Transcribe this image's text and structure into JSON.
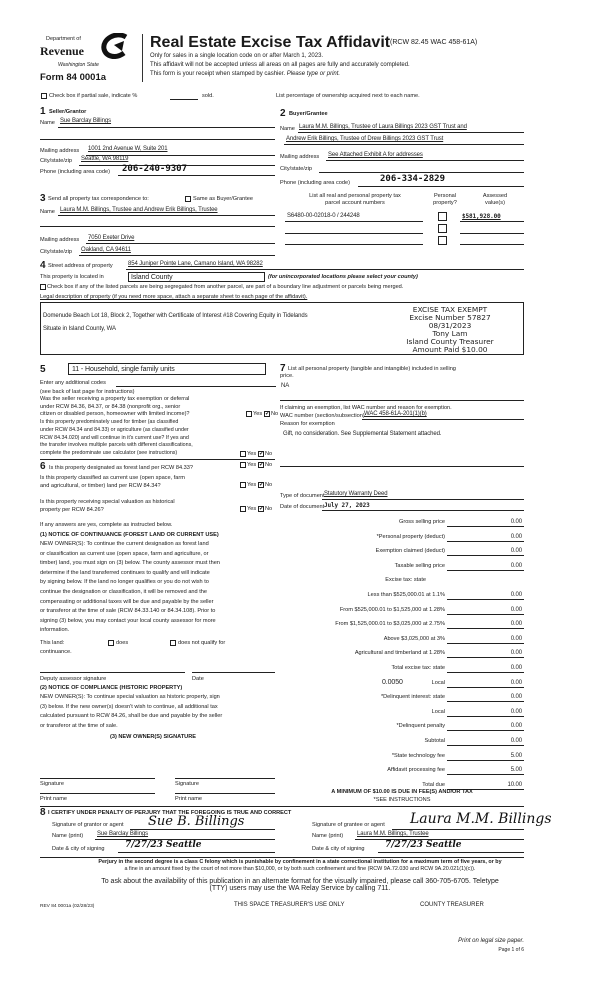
{
  "header": {
    "dept": "Department of",
    "revenue": "Revenue",
    "state": "Washington State",
    "form": "Form 84 0001a",
    "title": "Real Estate Excise Tax Affidavit",
    "rcw": "(RCW 82.45 WAC 458-61A)",
    "line1": "Only for sales in a single location code on or after March 1, 2023.",
    "line2": "This affidavit will not be accepted unless all areas on all pages are fully and accurately completed.",
    "line3": "This form is your receipt when stamped by cashier.",
    "line3_italic": "Please type or print."
  },
  "partial": {
    "label": "Check box if partial sale, indicate %",
    "sold": "sold."
  },
  "ownership_note": "List percentage of ownership acquired next to each name.",
  "seller": {
    "num": "1",
    "heading": "Seller/Grantor",
    "name_label": "Name",
    "name": "Sue Barclay Billings",
    "mailing_label": "Mailing address",
    "mailing": "1001 2nd Avenue W, Suite 201",
    "city_label": "City/state/zip",
    "city": "Seattle, WA 98119",
    "phone_label": "Phone (including area code)",
    "phone": "206-240-9307"
  },
  "buyer": {
    "num": "2",
    "heading": "Buyer/Grantee",
    "name_label": "Name",
    "name1": "Laura M.M. Billings, Trustee of Laura Billings 2023 GST Trust and",
    "name2": "Andrew Erik Billings, Trustee of Drew Billings 2023 GST Trust",
    "mailing_label": "Mailing address",
    "mailing": "See Attached Exhibit A for addresses",
    "city_label": "City/state/zip",
    "phone_label": "Phone (including area code)",
    "phone": "206-334-2829"
  },
  "correspondence": {
    "num": "3",
    "label": "Send all property tax correspondence to:",
    "same_label": "Same as Buyer/Grantee",
    "name_label": "Name",
    "name": "Laura M.M. Billings, Trustee and Andrew Erik Billings, Trustee",
    "mailing_label": "Mailing address",
    "mailing": "7050 Exeter Drive",
    "city_label": "City/state/zip",
    "city": "Oakland, CA 94611"
  },
  "parcels": {
    "h1a": "List all real and personal property tax",
    "h1b": "parcel account numbers",
    "h2a": "Personal",
    "h2b": "property?",
    "h3a": "Assessed",
    "h3b": "value(s)",
    "rows": [
      {
        "number": "S6480-00-02018-0 / 244248",
        "personal": false,
        "value": "$581,928.00"
      },
      {
        "number": "",
        "personal": false,
        "value": ""
      },
      {
        "number": "",
        "personal": false,
        "value": ""
      }
    ]
  },
  "property": {
    "num": "4",
    "street_label": "Street address of property",
    "street": "854 Juniper Pointe Lane, Camano Island, WA 98282",
    "located_label": "This property is located in",
    "county": "Island County",
    "county_note": "(for unincorporated locations please select your county)",
    "segregated_label": "Check box if any of the listed parcels are being segregated from another parcel, are part of a boundary line adjustment or parcels being merged.",
    "legal_label": "Legal description of property (if you need more space, attach a separate sheet to each page of the affidavit).",
    "legal1": "Domenude Beach Lot 18, Block 2, Together with Certificate of Interest #18 Covering Equity in Tidelands",
    "legal2": "Situate in Island County, WA"
  },
  "stamp": {
    "l1": "EXCISE TAX EXEMPT",
    "l2": "Excise Number 57827",
    "l3": "08/31/2023",
    "l4": "Tony Lam",
    "l5": "Island County Treasurer",
    "l6": "Amount Paid $10.00"
  },
  "section5": {
    "num": "5",
    "code": "11 - Household, single family units",
    "additional_label": "Enter any additional codes",
    "see_back": "(see back of last page for instructions)",
    "q1": [
      "Was the seller receiving a property tax exemption or deferral",
      "under RCW 84.36, 84.37, or 84.38 (nonprofit org., senior",
      "citizen or disabled person, homeowner with limited income)?"
    ],
    "q2": [
      "Is this property predominately used for timber (as classified",
      "under RCW 84.34 and 84.33) or agriculture (as classified under",
      "RCW 84.34.020) and will continue in it's current use? If yes and",
      "the transfer involves multiple parcels with different classifications,",
      "complete the predominate use calculator (see instructions)"
    ],
    "yes": "Yes",
    "no": "No"
  },
  "section6": {
    "num": "6",
    "q1": "Is this property designated as forest land per RCW 84.33?",
    "q2": [
      "Is this property classified as current use (open space, farm",
      "and agricultural, or timber) land per RCW 84.34?"
    ],
    "q3": [
      "Is this property receiving special valuation as historical",
      "property per RCW 84.26?"
    ],
    "if_yes": "If any answers are yes, complete as instructed below.",
    "notice1_title": "(1) NOTICE OF CONTINUANCE (FOREST LAND OR CURRENT USE)",
    "notice1": [
      "NEW OWNER(S): To continue the current designation as forest land",
      "or classification as current use (open space, farm and agriculture, or",
      "timber) land, you must sign on (3) below. The county assessor must then",
      "determine if the land transferred continues to qualify and will indicate",
      "by signing below. If the land no longer qualifies or you do not wish to",
      "continue the designation or classification, it will be removed and the",
      "compensating or additional taxes will be due and payable by the seller",
      "or transferor at the time of sale (RCW 84.33.140 or 84.34.108). Prior to",
      "signing (3) below, you may contact your local county assessor for more",
      "information."
    ],
    "this_land": "This land:",
    "does": "does",
    "does_not": "does not qualify for",
    "continuance": "continuance.",
    "deputy": "Deputy assessor signature",
    "date": "Date",
    "notice2_title": "(2) NOTICE OF COMPLIANCE (HISTORIC PROPERTY)",
    "notice2": [
      "NEW OWNER(S): To continue special valuation as historic property, sign",
      "(3) below. If the new owner(s) doesn't wish to continue, all additional tax",
      "calculated pursuant to RCW 84.26, shall be due and payable by the seller",
      "or transferor at the time of sale."
    ],
    "notice3_title": "(3) NEW OWNER(S) SIGNATURE",
    "signature": "Signature",
    "print_name": "Print name"
  },
  "section7": {
    "num": "7",
    "label1": "List all personal property (tangible and intangible) included in selling",
    "label2": "price.",
    "value": "NA",
    "exemption_label": "If claiming an exemption, list WAC number and reason for exemption.",
    "wac_label": "WAC number (section/subsection)",
    "wac": "WAC 458-61A-201(1)(b)",
    "reason_label": "Reason for exemption",
    "reason": "Gift, no consideration.  See Supplemental Statement attached.",
    "doc_type_label": "Type of document",
    "doc_type": "Statutory Warranty Deed",
    "doc_date_label": "Date of document",
    "doc_date": "July 27, 2023"
  },
  "tax": {
    "rows": [
      {
        "label": "Gross selling price",
        "value": "0.00"
      },
      {
        "label": "*Personal property (deduct)",
        "value": "0.00"
      },
      {
        "label": "Exemption claimed (deduct)",
        "value": "0.00"
      },
      {
        "label": "Taxable selling price",
        "value": "0.00"
      },
      {
        "label": "Excise tax: state",
        "value": null
      },
      {
        "label": "Less than $525,000.01 at 1.1%",
        "value": "0.00"
      },
      {
        "label": "From $525,000.01 to $1,525,000 at 1.28%",
        "value": "0.00"
      },
      {
        "label": "From $1,525,000.01 to $3,025,000 at 2.75%",
        "value": "0.00"
      },
      {
        "label": "Above $3,025,000 at 3%",
        "value": "0.00"
      },
      {
        "label": "Agricultural and timberland at 1.28%",
        "value": "0.00"
      },
      {
        "label": "Total excise tax: state",
        "value": "0.00"
      },
      {
        "label": "Local",
        "value": "0.00",
        "rate": "0.0050"
      },
      {
        "label": "*Delinquent interest: state",
        "value": "0.00"
      },
      {
        "label": "Local",
        "value": "0.00"
      },
      {
        "label": "*Delinquent penalty",
        "value": "0.00"
      },
      {
        "label": "Subtotal",
        "value": "0.00"
      },
      {
        "label": "*State technology fee",
        "value": "5.00"
      },
      {
        "label": "Affidavit processing fee",
        "value": "5.00"
      },
      {
        "label": "Total due",
        "value": "10.00"
      }
    ],
    "minimum": "A MINIMUM OF $10.00 IS DUE IN FEE(S) AND/OR TAX",
    "see_instructions": "*SEE INSTRUCTIONS"
  },
  "section8": {
    "num": "8",
    "certify": "I CERTIFY UNDER PENALTY OF PERJURY THAT THE FOREGOING IS TRUE AND CORRECT",
    "grantor_sig_label": "Signature of grantor or agent",
    "grantor_sig": "Sue B. Billings",
    "grantor_name_label": "Name (print)",
    "grantor_name": "Sue Barclay Billings",
    "grantor_date_label": "Date & city of signing",
    "grantor_date": "7/27/23  Seattle",
    "grantee_sig_label": "Signature of grantee or agent",
    "grantee_sig": "Laura M.M. Billings",
    "grantee_name_label": "Name (print)",
    "grantee_name": "Laura M.M. Billings, Trustee",
    "grantee_date_label": "Date & city of signing",
    "grantee_date": "7/27/23  Seattle"
  },
  "footer": {
    "perjury1": "Perjury in the second degree is a class C felony which is punishable by confinement in a state correctional institution for a maximum term of five years, or by",
    "perjury2": "a fine in an amount fixed by the court of not more than $10,000, or by both such confinement and fine (RCW 9A.72.030 and RCW 9A.20.021(1)(c)).",
    "access1": "To ask about the availability of this publication in an alternate format for the visually impaired, please call 360-705-6705. Teletype",
    "access2": "(TTY) users may use the WA Relay Service by calling 711.",
    "rev": "REV 84 0001a  (02/28/23)",
    "treasurer_use": "THIS SPACE TREASURER'S USE ONLY",
    "county_treasurer": "COUNTY TREASURER",
    "legal_paper": "Print on legal size paper.",
    "page": "Page 1 of 6"
  }
}
